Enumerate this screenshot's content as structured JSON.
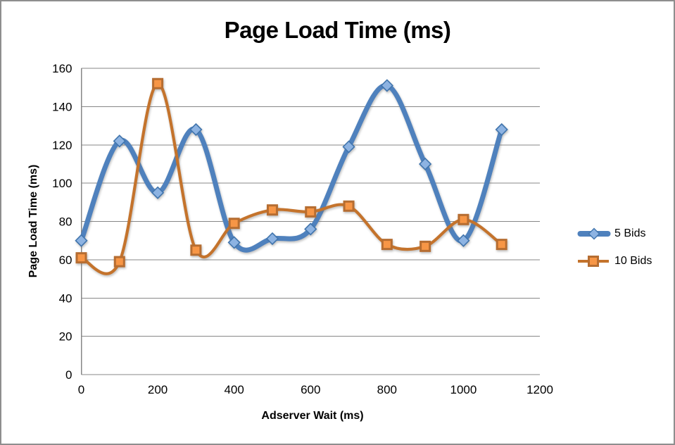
{
  "window": {
    "background": "#ffffff",
    "frame_border_color": "#8e8e8e"
  },
  "chart_data": {
    "type": "line",
    "title": "Page Load Time (ms)",
    "xlabel": "Adserver Wait (ms)",
    "ylabel": "Page Load Time (ms)",
    "x": [
      0,
      100,
      200,
      300,
      400,
      500,
      600,
      700,
      800,
      900,
      1000,
      1100
    ],
    "series": [
      {
        "name": "5 Bids",
        "line_color": "#4f81bd",
        "marker": "diamond",
        "marker_fill": "#8db3e2",
        "marker_stroke": "#4175ad",
        "values": [
          70,
          122,
          95,
          128,
          69,
          71,
          76,
          119,
          151,
          110,
          70,
          128
        ]
      },
      {
        "name": "10 Bids",
        "line_color": "#c4732c",
        "marker": "square",
        "marker_fill": "#f79646",
        "marker_stroke": "#b66d31",
        "values": [
          61,
          59,
          152,
          65,
          79,
          86,
          85,
          88,
          68,
          67,
          81,
          68
        ]
      }
    ],
    "xlim": [
      0,
      1200
    ],
    "ylim": [
      0,
      160
    ],
    "x_ticks": [
      0,
      200,
      400,
      600,
      800,
      1000,
      1200
    ],
    "y_ticks": [
      0,
      20,
      40,
      60,
      80,
      100,
      120,
      140,
      160
    ],
    "grid": "horizontal",
    "grid_color": "#878787",
    "legend_position": "right",
    "smooth": true
  }
}
